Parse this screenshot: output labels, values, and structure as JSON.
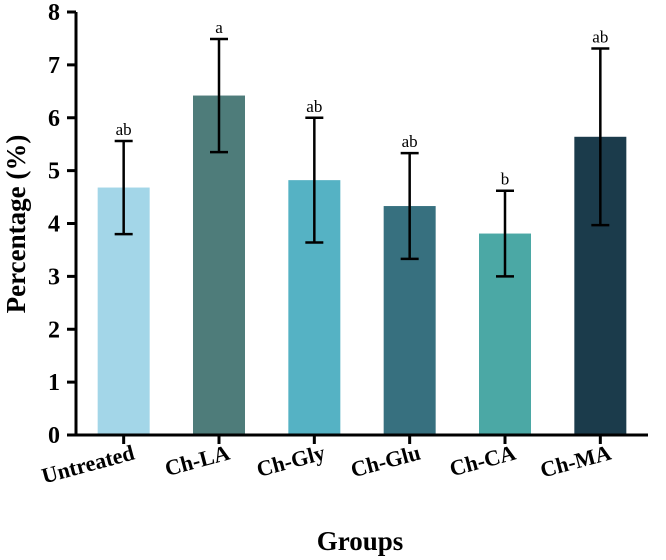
{
  "chart_data": {
    "type": "bar",
    "title": "",
    "xlabel": "Groups",
    "ylabel": "Percentage (%)",
    "ylim": [
      0,
      8
    ],
    "yticks": [
      "0",
      "1",
      "2",
      "3",
      "4",
      "5",
      "6",
      "7",
      "8"
    ],
    "categories": [
      "Untreated",
      "Ch-LA",
      "Ch-Gly",
      "Ch-Glu",
      "Ch-CA",
      "Ch-MA"
    ],
    "values": [
      4.68,
      6.42,
      4.82,
      4.33,
      3.81,
      5.64
    ],
    "errors": [
      0.88,
      1.07,
      1.18,
      1.0,
      0.81,
      1.67
    ],
    "significance": [
      "ab",
      "a",
      "ab",
      "ab",
      "b",
      "ab"
    ],
    "colors": [
      "#a3d6e8",
      "#4e7c7a",
      "#55b2c4",
      "#37707f",
      "#4ba8a5",
      "#1b3b4b"
    ],
    "grid": false,
    "legend": null
  }
}
